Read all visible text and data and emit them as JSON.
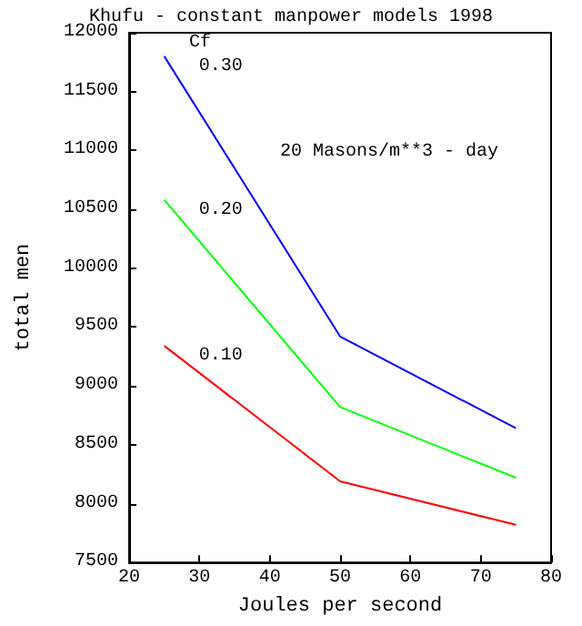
{
  "chart_data": {
    "type": "line",
    "title": "Khufu - constant manpower models 1998",
    "xlabel": "Joules per second",
    "ylabel": "total men",
    "annotations": [
      "Cf",
      "20 Masons/m**3 - day"
    ],
    "x": [
      25,
      50,
      75
    ],
    "series": [
      {
        "name": "0.30",
        "color": "#0000ff",
        "values": [
          11800,
          9420,
          8640
        ]
      },
      {
        "name": "0.20",
        "color": "#00ff00",
        "values": [
          10580,
          8820,
          8220
        ]
      },
      {
        "name": "0.10",
        "color": "#ff0000",
        "values": [
          9340,
          8190,
          7820
        ]
      }
    ],
    "xlim": [
      20,
      80
    ],
    "xticks": [
      20,
      30,
      40,
      50,
      60,
      70,
      80
    ],
    "ylim": [
      7500,
      12000
    ],
    "yticks": [
      7500,
      8000,
      8500,
      9000,
      9500,
      10000,
      10500,
      11000,
      11500,
      12000
    ],
    "grid": false,
    "legend": false,
    "marker": "none",
    "line_style": "solid"
  }
}
